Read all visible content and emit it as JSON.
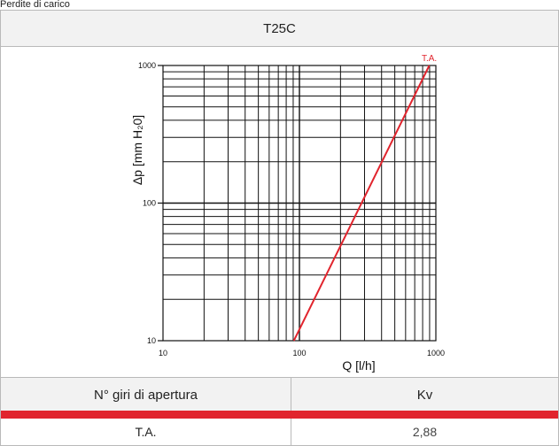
{
  "caption": "Perdite di carico",
  "chart_data": {
    "type": "line",
    "title": "T25C",
    "xlabel": "Q [l/h]",
    "ylabel": "Δp [mm H₂0]",
    "x_scale": "log",
    "y_scale": "log",
    "xlim": [
      10,
      1000
    ],
    "ylim": [
      10,
      1000
    ],
    "x_ticks": [
      "10",
      "100",
      "1000"
    ],
    "y_ticks": [
      "10",
      "100",
      "1000"
    ],
    "grid": true,
    "series": [
      {
        "name": "T.A.",
        "color": "#e1242d",
        "x": [
          91,
          895
        ],
        "y": [
          10,
          1000
        ]
      }
    ]
  },
  "table": {
    "headers": [
      "N° giri di apertura",
      "Kv"
    ],
    "rows": [
      [
        "T.A.",
        "2,88"
      ]
    ],
    "accent_color": "#e1242d"
  }
}
